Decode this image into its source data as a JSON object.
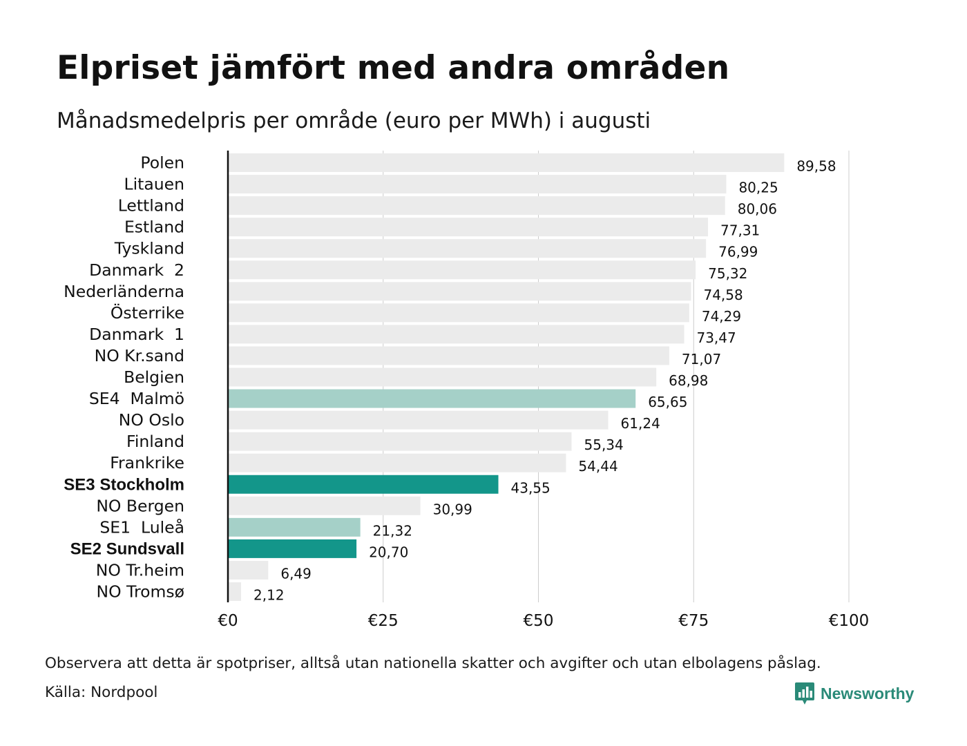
{
  "title": "Elpriset jämfört med andra områden",
  "subtitle": "Månadsmedelpris per område (euro per MWh) i augusti",
  "chart_data": {
    "type": "bar",
    "orientation": "horizontal",
    "categories": [
      "Polen",
      "Litauen",
      "Lettland",
      "Estland",
      "Tyskland",
      "Danmark  2",
      "Nederländerna",
      "Österrike",
      "Danmark  1",
      "NO Kr.sand",
      "Belgien",
      "SE4  Malmö",
      "NO Oslo",
      "Finland",
      "Frankrike",
      "SE3 Stockholm",
      "NO Bergen",
      "SE1  Luleå",
      "SE2 Sundsvall",
      "NO Tr.heim",
      "NO Tromsø"
    ],
    "values": [
      89.58,
      80.25,
      80.06,
      77.31,
      76.99,
      75.32,
      74.58,
      74.29,
      73.47,
      71.07,
      68.98,
      65.65,
      61.24,
      55.34,
      54.44,
      43.55,
      30.99,
      21.32,
      20.7,
      6.49,
      2.12
    ],
    "value_labels": [
      "89,58",
      "80,25",
      "80,06",
      "77,31",
      "76,99",
      "75,32",
      "74,58",
      "74,29",
      "73,47",
      "71,07",
      "68,98",
      "65,65",
      "61,24",
      "55,34",
      "54,44",
      "43,55",
      "30,99",
      "21,32",
      "20,70",
      "6,49",
      "2,12"
    ],
    "bar_colors": [
      "#ebebeb",
      "#ebebeb",
      "#ebebeb",
      "#ebebeb",
      "#ebebeb",
      "#ebebeb",
      "#ebebeb",
      "#ebebeb",
      "#ebebeb",
      "#ebebeb",
      "#ebebeb",
      "#a5d0c8",
      "#ebebeb",
      "#ebebeb",
      "#ebebeb",
      "#13968a",
      "#ebebeb",
      "#a5d0c8",
      "#13968a",
      "#ebebeb",
      "#ebebeb"
    ],
    "bold_categories": [
      "SE3 Stockholm",
      "SE2 Sundsvall"
    ],
    "x_ticks": [
      0,
      25,
      50,
      75,
      100
    ],
    "x_tick_labels": [
      "€0",
      "€25",
      "€50",
      "€75",
      "€100"
    ],
    "xlim": [
      0,
      100
    ],
    "xlabel": "",
    "ylabel": "",
    "grid": "vertical"
  },
  "footnote": "Observera att detta är spotpriser, alltså utan nationella skatter och avgifter och utan elbolagens påslag.",
  "source": "Källa: Nordpool",
  "logo": {
    "text": "Newsworthy",
    "color": "#2a8a78",
    "icon": "newsworthy-chart-bubble-icon"
  },
  "colors": {
    "highlight_dark": "#13968a",
    "highlight_light": "#a5d0c8",
    "default_bar": "#ebebeb",
    "gridline": "#cccccc",
    "axis": "#111111"
  }
}
